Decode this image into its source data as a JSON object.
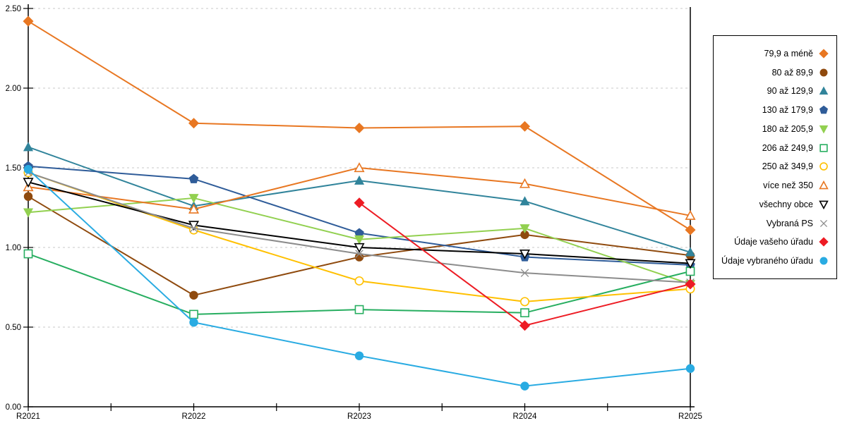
{
  "chart_data": {
    "type": "line",
    "title": "",
    "xlabel": "",
    "ylabel": "",
    "x_categories": [
      "R2021",
      "R2022",
      "R2023",
      "R2024",
      "R2025"
    ],
    "y_tick_labels": [
      "0.00",
      "0.50",
      "1.00",
      "1.50",
      "2.00",
      "2.50"
    ],
    "ylim": [
      0,
      2.5
    ],
    "grid": "horizontal-dashed",
    "gridline_color": "#c8c8c8",
    "legend_position": "right",
    "series": [
      {
        "name": "79,9 a méně",
        "color": "#e87722",
        "marker": "diamond",
        "fill": "solid",
        "values": [
          2.42,
          1.78,
          1.75,
          1.76,
          1.11
        ]
      },
      {
        "name": "80 až 89,9",
        "color": "#8f4a0e",
        "marker": "circle",
        "fill": "solid",
        "values": [
          1.32,
          0.7,
          0.94,
          1.08,
          0.95
        ]
      },
      {
        "name": "90 až 129,9",
        "color": "#31849b",
        "marker": "triangle-up",
        "fill": "solid",
        "values": [
          1.63,
          1.26,
          1.42,
          1.29,
          0.97
        ]
      },
      {
        "name": "130 až 179,9",
        "color": "#2f5c99",
        "marker": "pentagon",
        "fill": "solid",
        "values": [
          1.51,
          1.43,
          1.09,
          0.94,
          0.89
        ]
      },
      {
        "name": "180 až 205,9",
        "color": "#92d050",
        "marker": "triangle-down",
        "fill": "solid",
        "values": [
          1.22,
          1.31,
          1.05,
          1.12,
          0.77
        ]
      },
      {
        "name": "206 až 249,9",
        "color": "#27ae60",
        "marker": "square",
        "fill": "open",
        "values": [
          0.96,
          0.58,
          0.61,
          0.59,
          0.85
        ]
      },
      {
        "name": "250 až 349,9",
        "color": "#ffc000",
        "marker": "circle",
        "fill": "open",
        "values": [
          1.47,
          1.11,
          0.79,
          0.66,
          0.74
        ]
      },
      {
        "name": "více než 350",
        "color": "#e87722",
        "marker": "triangle-up",
        "fill": "open",
        "values": [
          1.38,
          1.24,
          1.5,
          1.4,
          1.2
        ]
      },
      {
        "name": "všechny obce",
        "color": "#000000",
        "marker": "triangle-down",
        "fill": "open",
        "values": [
          1.41,
          1.14,
          1.0,
          0.96,
          0.9
        ]
      },
      {
        "name": "Vybraná PS",
        "color": "#8c8c8c",
        "marker": "x",
        "fill": "open",
        "values": [
          1.47,
          1.12,
          0.96,
          0.84,
          0.78
        ]
      },
      {
        "name": "Údaje vašeho úřadu",
        "color": "#ed1c24",
        "marker": "diamond",
        "fill": "solid",
        "values": [
          null,
          null,
          1.28,
          0.51,
          0.77
        ]
      },
      {
        "name": "Údaje vybraného úřadu",
        "color": "#29abe2",
        "marker": "circle",
        "fill": "solid",
        "values": [
          1.49,
          0.53,
          0.32,
          0.13,
          0.24
        ]
      }
    ]
  }
}
